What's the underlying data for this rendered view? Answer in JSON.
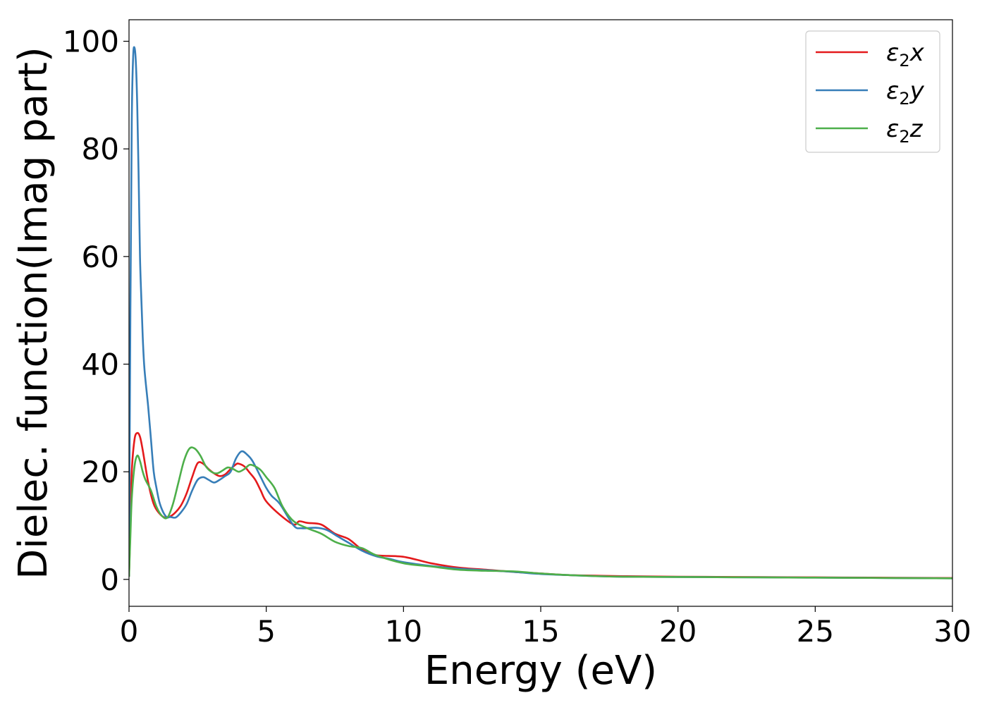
{
  "chart_data": {
    "type": "line",
    "xlabel": "Energy (eV)",
    "ylabel": "Dielec. function(Imag part)",
    "xlim": [
      0,
      30
    ],
    "ylim": [
      -5,
      104
    ],
    "xticks": [
      0,
      5,
      10,
      15,
      20,
      25,
      30
    ],
    "yticks": [
      0,
      20,
      40,
      60,
      80,
      100
    ],
    "grid": false,
    "legend_position": "top-right",
    "series": [
      {
        "name": "ε2x",
        "legend": {
          "base": "ε",
          "sub": "2",
          "var": "x"
        },
        "color": "#e41a1c",
        "x": [
          0,
          0.05,
          0.1,
          0.2,
          0.3,
          0.4,
          0.5,
          0.7,
          0.9,
          1.1,
          1.3,
          1.5,
          1.7,
          1.9,
          2.1,
          2.3,
          2.5,
          2.7,
          2.9,
          3.1,
          3.3,
          3.5,
          3.7,
          3.9,
          4.0,
          4.2,
          4.4,
          4.6,
          4.8,
          5.0,
          5.5,
          6.0,
          6.2,
          6.5,
          7.0,
          7.5,
          8.0,
          8.5,
          9.0,
          10.0,
          11.0,
          12.0,
          13.0,
          14.0,
          15.0,
          16.0,
          17.0,
          18.0,
          20.0,
          22.0,
          24.0,
          26.0,
          28.0,
          30.0
        ],
        "values": [
          0.5,
          10,
          20,
          26,
          27.2,
          26.5,
          24,
          18,
          14,
          12.3,
          11.5,
          11.7,
          12.5,
          13.8,
          16,
          19,
          21.6,
          21.5,
          20.5,
          19.7,
          19.2,
          19.5,
          20.5,
          21.4,
          21.5,
          21,
          19.8,
          18.5,
          16.5,
          14.5,
          12,
          10.2,
          10.8,
          10.5,
          10.2,
          8.5,
          7.5,
          5.5,
          4.5,
          4.2,
          3.0,
          2.2,
          1.8,
          1.4,
          1.1,
          0.8,
          0.7,
          0.6,
          0.5,
          0.45,
          0.4,
          0.35,
          0.3,
          0.25
        ]
      },
      {
        "name": "ε2y",
        "legend": {
          "base": "ε",
          "sub": "2",
          "var": "y"
        },
        "color": "#377eb8",
        "x": [
          0,
          0.05,
          0.1,
          0.15,
          0.2,
          0.25,
          0.3,
          0.35,
          0.4,
          0.45,
          0.5,
          0.55,
          0.6,
          0.7,
          0.8,
          0.9,
          1.0,
          1.1,
          1.2,
          1.3,
          1.4,
          1.5,
          1.7,
          1.9,
          2.1,
          2.3,
          2.5,
          2.7,
          2.9,
          3.1,
          3.3,
          3.5,
          3.7,
          3.9,
          4.1,
          4.3,
          4.5,
          4.8,
          5.0,
          5.2,
          5.5,
          6.0,
          6.3,
          6.8,
          7.2,
          7.6,
          8.0,
          8.5,
          9.0,
          9.5,
          10.0,
          11.0,
          12.0,
          13.0,
          14.0,
          15.0,
          16.0,
          17.0,
          18.0,
          20.0,
          22.0,
          24.0,
          26.0,
          28.0,
          30.0
        ],
        "values": [
          0.5,
          50,
          85,
          97,
          98.8,
          96,
          88,
          75,
          60,
          52,
          45,
          40,
          37,
          32,
          26,
          20,
          17,
          14.5,
          13,
          12,
          11.5,
          11.6,
          11.5,
          12.5,
          14,
          16.5,
          18.5,
          19,
          18.5,
          18,
          18.5,
          19.2,
          20,
          22.5,
          23.8,
          23.2,
          22,
          19,
          17,
          15.5,
          14,
          10,
          9.5,
          9.6,
          9.2,
          8,
          6.8,
          5.3,
          4.3,
          3.8,
          3.2,
          2.5,
          2.0,
          1.7,
          1.4,
          1.0,
          0.8,
          0.6,
          0.5,
          0.45,
          0.4,
          0.35,
          0.3,
          0.25,
          0.2
        ]
      },
      {
        "name": "ε2z",
        "legend": {
          "base": "ε",
          "sub": "2",
          "var": "z"
        },
        "color": "#4daf4a",
        "x": [
          0,
          0.05,
          0.1,
          0.2,
          0.3,
          0.4,
          0.5,
          0.6,
          0.8,
          1.0,
          1.2,
          1.4,
          1.6,
          1.8,
          2.0,
          2.2,
          2.4,
          2.6,
          2.8,
          3.0,
          3.2,
          3.4,
          3.6,
          3.8,
          4.0,
          4.2,
          4.4,
          4.6,
          4.8,
          5.0,
          5.3,
          5.6,
          6.0,
          6.5,
          7.0,
          7.5,
          8.0,
          8.5,
          9.0,
          10.0,
          11.0,
          12.0,
          13.0,
          14.0,
          15.0,
          16.0,
          17.0,
          18.0,
          20.0,
          22.0,
          24.0,
          26.0,
          28.0,
          30.0
        ],
        "values": [
          0.5,
          8,
          15,
          21,
          23,
          22,
          20,
          18.5,
          16.5,
          13.5,
          11.8,
          11.5,
          14,
          18,
          22,
          24.3,
          24.3,
          23,
          21,
          20,
          19.7,
          20.2,
          20.8,
          20.5,
          20,
          20.5,
          21.3,
          21,
          20.3,
          19,
          17,
          13.5,
          10.8,
          9.5,
          8.5,
          7.0,
          6.2,
          5.8,
          4.5,
          3.0,
          2.4,
          1.8,
          1.6,
          1.5,
          1.1,
          0.8,
          0.6,
          0.5,
          0.45,
          0.4,
          0.35,
          0.3,
          0.25,
          0.2
        ]
      }
    ]
  }
}
